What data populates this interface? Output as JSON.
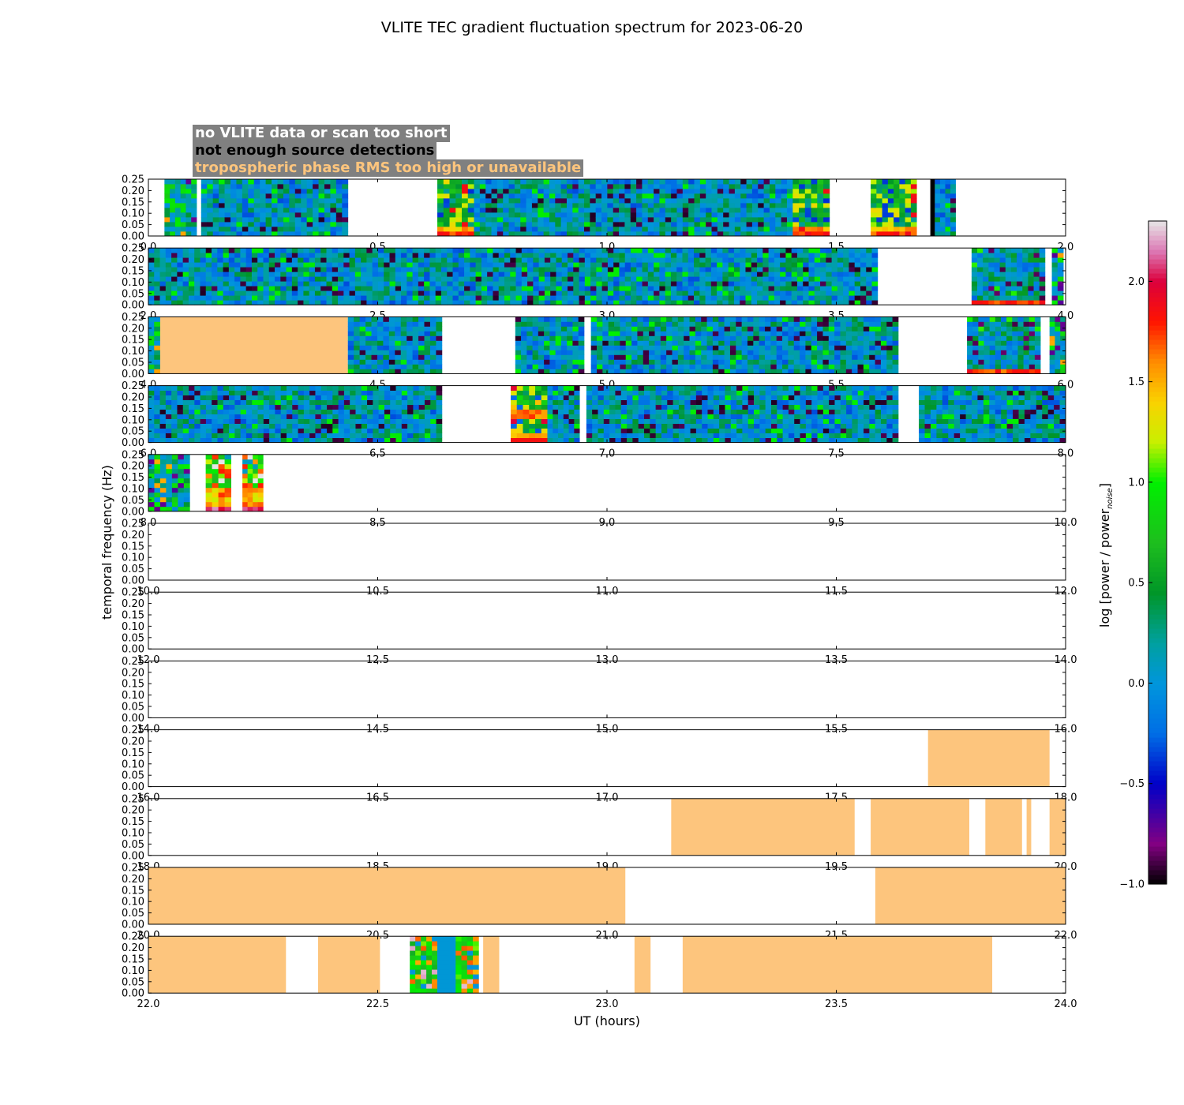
{
  "chart_data": {
    "type": "heatmap",
    "title": "VLITE TEC gradient fluctuation spectrum for 2023-06-20",
    "xlabel": "UT (hours)",
    "ylabel": "temporal frequency (Hz)",
    "colorbar_label_main": "log [power / power",
    "colorbar_label_sub": "noise",
    "colorbar_label_end": "]",
    "colorbar_range": [
      -1.0,
      2.3
    ],
    "colorbar_ticks": [
      "−1.0",
      "−0.5",
      "0.0",
      "0.5",
      "1.0",
      "1.5",
      "2.0"
    ],
    "colorbar_tick_values": [
      -1.0,
      -0.5,
      0.0,
      0.5,
      1.0,
      1.5,
      2.0
    ],
    "ylim": [
      0,
      0.25
    ],
    "y_ticks": [
      "0.00",
      "0.05",
      "0.10",
      "0.15",
      "0.20",
      "0.25"
    ],
    "legend": [
      {
        "label": "no VLITE data or scan too short",
        "color": "#ffffff"
      },
      {
        "label": "not enough source detections",
        "color": "#000000"
      },
      {
        "label": "tropospheric phase RMS too high or unavailable",
        "color": "#fdc57d"
      }
    ],
    "panels": [
      {
        "range": [
          0,
          2
        ],
        "ticks": [
          "0.0",
          "0.5",
          "1.0",
          "1.5",
          "2.0"
        ],
        "spectra": [
          [
            0.035,
            0.105,
            1
          ],
          [
            0.115,
            0.435,
            2
          ],
          [
            0.63,
            0.71,
            4
          ],
          [
            0.71,
            1.405,
            2
          ],
          [
            1.405,
            1.485,
            4
          ],
          [
            1.575,
            1.675,
            4
          ],
          [
            1.715,
            1.76,
            2
          ]
        ],
        "black": [
          [
            1.705,
            1.715
          ]
        ],
        "tropo": []
      },
      {
        "range": [
          2,
          4
        ],
        "ticks": [
          "2.0",
          "2.5",
          "3.0",
          "3.5",
          "4.0"
        ],
        "spectra": [
          [
            2.0,
            3.59,
            2
          ],
          [
            3.795,
            3.955,
            3
          ],
          [
            3.97,
            3.995,
            1
          ]
        ],
        "black": [],
        "tropo": []
      },
      {
        "range": [
          4,
          6
        ],
        "ticks": [
          "4.0",
          "4.5",
          "5.0",
          "5.5",
          "6.0"
        ],
        "spectra": [
          [
            4.0,
            4.025,
            1
          ],
          [
            4.435,
            4.64,
            2
          ],
          [
            4.8,
            4.95,
            2
          ],
          [
            4.965,
            5.635,
            2
          ],
          [
            5.785,
            5.945,
            3
          ],
          [
            5.965,
            6.0,
            1
          ]
        ],
        "black": [],
        "tropo": [
          [
            4.025,
            4.435
          ]
        ]
      },
      {
        "range": [
          6,
          8
        ],
        "ticks": [
          "6.0",
          "6.5",
          "7.0",
          "7.5",
          "8.0"
        ],
        "spectra": [
          [
            6.0,
            6.64,
            2
          ],
          [
            6.79,
            6.87,
            5
          ],
          [
            6.87,
            6.94,
            2
          ],
          [
            6.955,
            7.635,
            2
          ],
          [
            7.68,
            8.0,
            2
          ]
        ],
        "black": [],
        "tropo": []
      },
      {
        "range": [
          8,
          10
        ],
        "ticks": [
          "8.0",
          "8.5",
          "9.0",
          "9.5",
          "10.0"
        ],
        "spectra": [
          [
            8.0,
            8.09,
            1
          ],
          [
            8.125,
            8.18,
            6
          ],
          [
            8.205,
            8.25,
            6
          ]
        ],
        "black": [],
        "tropo": []
      },
      {
        "range": [
          10,
          12
        ],
        "ticks": [
          "10.0",
          "10.5",
          "11.0",
          "11.5",
          "12.0"
        ],
        "spectra": [],
        "black": [],
        "tropo": []
      },
      {
        "range": [
          12,
          14
        ],
        "ticks": [
          "12.0",
          "12.5",
          "13.0",
          "13.5",
          "14.0"
        ],
        "spectra": [],
        "black": [],
        "tropo": []
      },
      {
        "range": [
          14,
          16
        ],
        "ticks": [
          "14.0",
          "14.5",
          "15.0",
          "15.5",
          "16.0"
        ],
        "spectra": [],
        "black": [],
        "tropo": []
      },
      {
        "range": [
          16,
          18
        ],
        "ticks": [
          "16.0",
          "16.5",
          "17.0",
          "17.5",
          "18.0"
        ],
        "spectra": [],
        "black": [],
        "tropo": [
          [
            17.7,
            17.965
          ]
        ]
      },
      {
        "range": [
          18,
          20
        ],
        "ticks": [
          "18.0",
          "18.5",
          "19.0",
          "19.5",
          "20.0"
        ],
        "spectra": [],
        "black": [],
        "tropo": [
          [
            19.14,
            19.54
          ],
          [
            19.575,
            19.79
          ],
          [
            19.825,
            19.905
          ],
          [
            19.915,
            19.925
          ],
          [
            19.965,
            20.0
          ]
        ]
      },
      {
        "range": [
          20,
          22
        ],
        "ticks": [
          "20.0",
          "20.5",
          "21.0",
          "21.5",
          "22.0"
        ],
        "spectra": [],
        "black": [],
        "tropo": [
          [
            20.0,
            21.04
          ],
          [
            21.585,
            22.0
          ]
        ]
      },
      {
        "range": [
          22,
          24
        ],
        "ticks": [
          "22.0",
          "22.5",
          "23.0",
          "23.5",
          "24.0"
        ],
        "spectra": [
          [
            22.57,
            22.63,
            7
          ],
          [
            22.63,
            22.67,
            8
          ],
          [
            22.67,
            22.72,
            7
          ]
        ],
        "black": [],
        "tropo": [
          [
            22.0,
            22.3
          ],
          [
            22.37,
            22.505
          ],
          [
            22.73,
            22.765
          ],
          [
            23.06,
            23.095
          ],
          [
            23.165,
            23.84
          ]
        ]
      }
    ]
  }
}
